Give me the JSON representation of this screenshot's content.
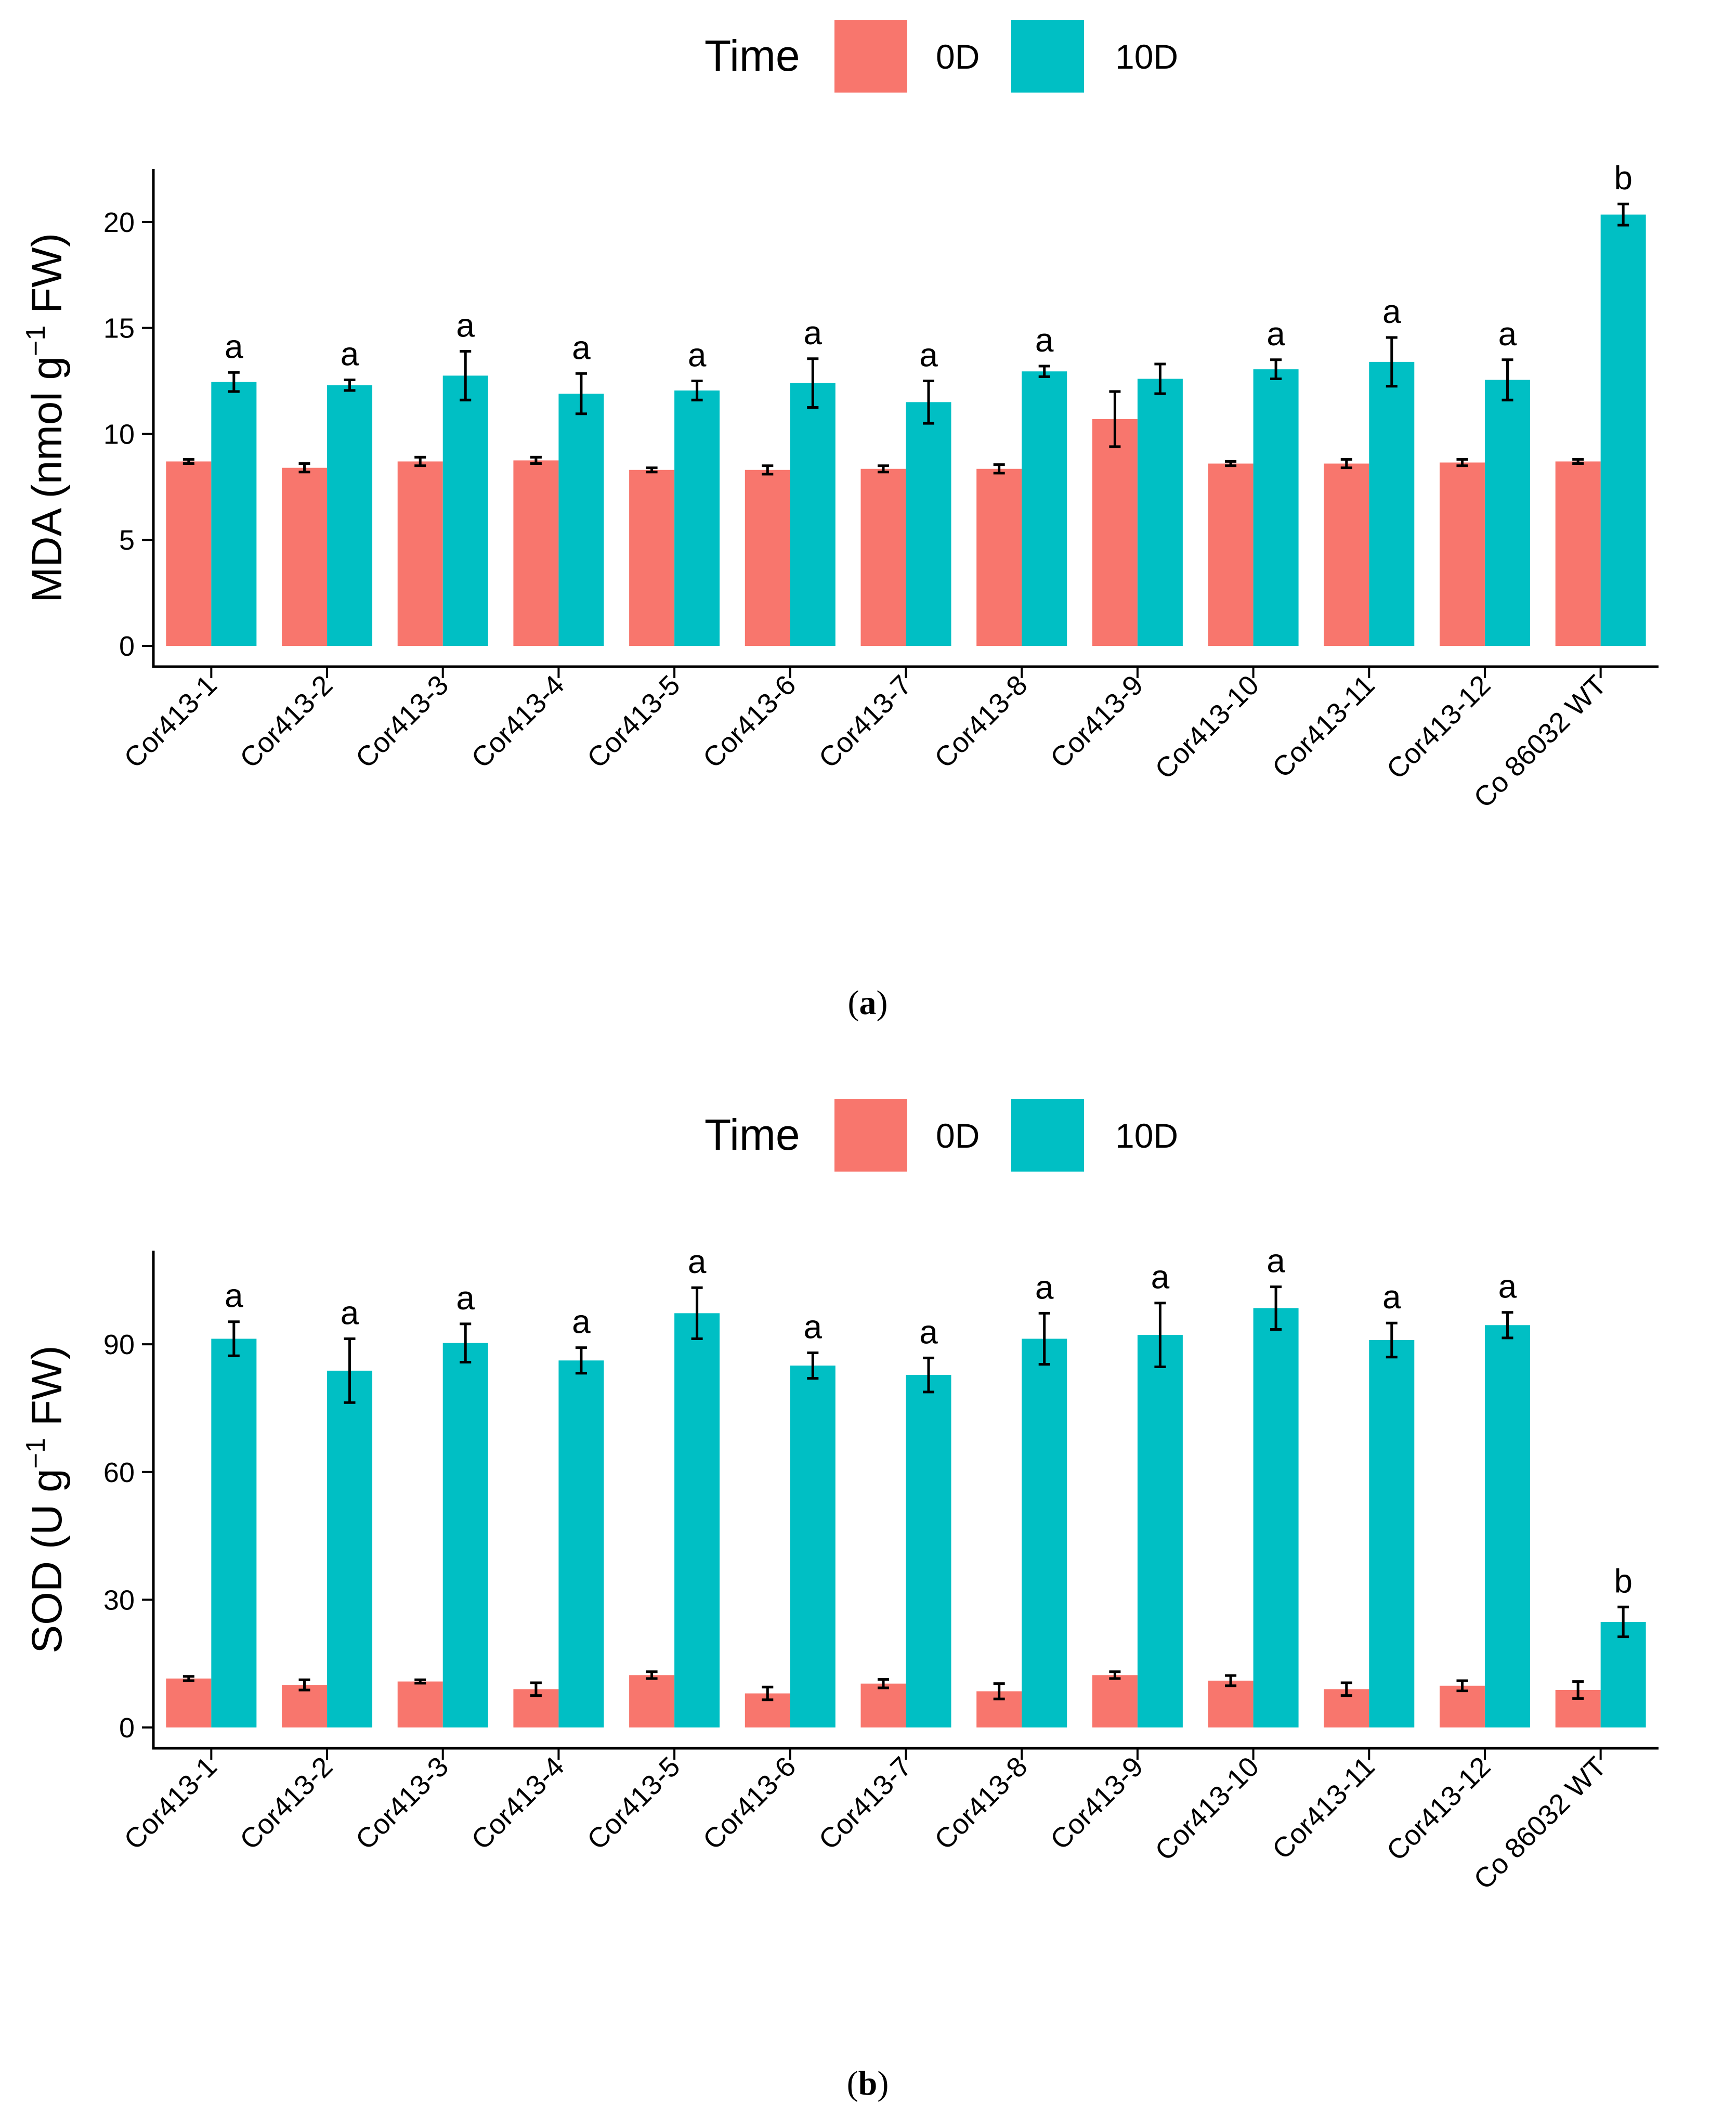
{
  "colors": {
    "0D": "#F8766D",
    "10D": "#00BFC4",
    "axis": "#000000"
  },
  "chart_data": [
    {
      "type": "bar",
      "caption_letter": "a",
      "legend": {
        "title": "Time",
        "placement": "top",
        "entries": [
          "0D",
          "10D"
        ]
      },
      "ylabel": "MDA (nmol g⁻¹ FW)",
      "ylabel_parts": {
        "pre": "MDA (nmol g",
        "sup": "−1",
        "post": " FW)"
      },
      "ylim": [
        0,
        22.5
      ],
      "yticks": [
        0,
        5,
        10,
        15,
        20
      ],
      "categories": [
        "Cor413-1",
        "Cor413-2",
        "Cor413-3",
        "Cor413-4",
        "Cor413-5",
        "Cor413-6",
        "Cor413-7",
        "Cor413-8",
        "Cor413-9",
        "Cor413-10",
        "Cor413-11",
        "Cor413-12",
        "Co 86032 WT"
      ],
      "series": [
        {
          "name": "0D",
          "values": [
            8.7,
            8.4,
            8.7,
            8.75,
            8.3,
            8.3,
            8.35,
            8.35,
            10.7,
            8.6,
            8.6,
            8.65,
            8.7
          ],
          "errors": [
            0.1,
            0.2,
            0.2,
            0.15,
            0.1,
            0.2,
            0.15,
            0.2,
            1.3,
            0.1,
            0.2,
            0.15,
            0.1
          ]
        },
        {
          "name": "10D",
          "values": [
            12.45,
            12.3,
            12.75,
            11.9,
            12.05,
            12.4,
            11.5,
            12.95,
            12.6,
            13.05,
            13.4,
            12.55,
            20.35
          ],
          "errors": [
            0.45,
            0.25,
            1.15,
            0.95,
            0.45,
            1.15,
            1.0,
            0.25,
            0.7,
            0.45,
            1.15,
            0.95,
            0.5
          ]
        }
      ],
      "significance": [
        "a",
        "a",
        "a",
        "a",
        "a",
        "a",
        "a",
        "a",
        "",
        "a",
        "a",
        "a",
        "b"
      ]
    },
    {
      "type": "bar",
      "caption_letter": "b",
      "legend": {
        "title": "Time",
        "placement": "top",
        "entries": [
          "0D",
          "10D"
        ]
      },
      "ylabel": "SOD (U g⁻¹ FW)",
      "ylabel_parts": {
        "pre": "SOD (U g",
        "sup": "−1",
        "post": " FW)"
      },
      "ylim": [
        0,
        112
      ],
      "yticks": [
        0,
        30,
        60,
        90
      ],
      "categories": [
        "Cor413-1",
        "Cor413-2",
        "Cor413-3",
        "Cor413-4",
        "Cor413-5",
        "Cor413-6",
        "Cor413-7",
        "Cor413-8",
        "Cor413-9",
        "Cor413-10",
        "Cor413-11",
        "Cor413-12",
        "Co 86032 WT"
      ],
      "series": [
        {
          "name": "0D",
          "values": [
            11.5,
            10,
            10.8,
            9,
            12.3,
            8,
            10.3,
            8.5,
            12.3,
            11,
            9,
            9.8,
            8.8
          ],
          "errors": [
            0.5,
            1.2,
            0.4,
            1.5,
            0.8,
            1.5,
            1.0,
            1.8,
            0.8,
            1.2,
            1.5,
            1.2,
            2.0
          ]
        },
        {
          "name": "10D",
          "values": [
            91.3,
            83.8,
            90.3,
            86.2,
            97.3,
            85.0,
            82.8,
            91.3,
            92.2,
            98.5,
            91.0,
            94.5,
            24.8
          ],
          "errors": [
            4.0,
            7.5,
            4.5,
            3.0,
            6.0,
            3.0,
            4.0,
            6.0,
            7.5,
            5.0,
            4.0,
            3.0,
            3.5
          ]
        }
      ],
      "significance": [
        "a",
        "a",
        "a",
        "a",
        "a",
        "a",
        "a",
        "a",
        "a",
        "a",
        "a",
        "a",
        "b"
      ]
    }
  ]
}
